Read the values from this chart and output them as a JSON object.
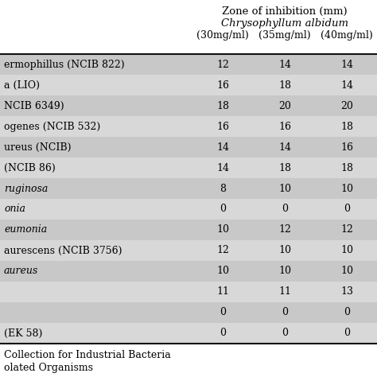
{
  "header_line1": "Zone of inhibition (mm)",
  "header_line2": "Chrysophyllum albidum",
  "col_headers": [
    "(30mg/ml)",
    "(35mg/ml)",
    "(40mg/ml)"
  ],
  "rows": [
    {
      "label": "ermophillus (NCIB 822)",
      "italic_parts": [
        true,
        false
      ],
      "vals": [
        "12",
        "14",
        "14"
      ]
    },
    {
      "label": "a (LIO)",
      "italic_parts": [
        true,
        false
      ],
      "vals": [
        "16",
        "18",
        "14"
      ]
    },
    {
      "label": "NCIB 6349)",
      "italic_parts": [
        false
      ],
      "vals": [
        "18",
        "20",
        "20"
      ]
    },
    {
      "label": "ogenes (NCIB 532)",
      "italic_parts": [
        true,
        false
      ],
      "vals": [
        "16",
        "16",
        "18"
      ]
    },
    {
      "label": "ureus (NCIB)",
      "italic_parts": [
        true,
        false
      ],
      "vals": [
        "14",
        "14",
        "16"
      ]
    },
    {
      "label": "(NCIB 86)",
      "italic_parts": [
        false
      ],
      "vals": [
        "14",
        "18",
        "18"
      ]
    },
    {
      "label": "ruginosa",
      "italic_parts": [
        true
      ],
      "vals": [
        "8",
        "10",
        "10"
      ]
    },
    {
      "label": "onia",
      "italic_parts": [
        true
      ],
      "vals": [
        "0",
        "0",
        "0"
      ]
    },
    {
      "label": "eumonia",
      "italic_parts": [
        true
      ],
      "vals": [
        "10",
        "12",
        "12"
      ]
    },
    {
      "label": "aurescens (NCIB 3756)",
      "italic_parts": [
        true,
        false
      ],
      "vals": [
        "12",
        "10",
        "10"
      ]
    },
    {
      "label": "aureus",
      "italic_parts": [
        true
      ],
      "vals": [
        "10",
        "10",
        "10"
      ]
    },
    {
      "label": "",
      "italic_parts": [
        false
      ],
      "vals": [
        "11",
        "11",
        "13"
      ]
    },
    {
      "label": "",
      "italic_parts": [
        false
      ],
      "vals": [
        "0",
        "0",
        "0"
      ]
    },
    {
      "label": "(EK 58)",
      "italic_parts": [
        false
      ],
      "vals": [
        "0",
        "0",
        "0"
      ]
    }
  ],
  "row_italics": [
    false,
    false,
    false,
    false,
    false,
    false,
    true,
    true,
    true,
    false,
    true,
    false,
    false,
    false
  ],
  "footnote1": "Collection for Industrial Bacteria",
  "footnote2": "olated Organisms",
  "bg_gray": "#c8c8c8",
  "bg_light": "#d8d8d8",
  "text_color": "#000000",
  "border_color": "#111111",
  "fig_w": 4.74,
  "fig_h": 4.74,
  "dpi": 100
}
